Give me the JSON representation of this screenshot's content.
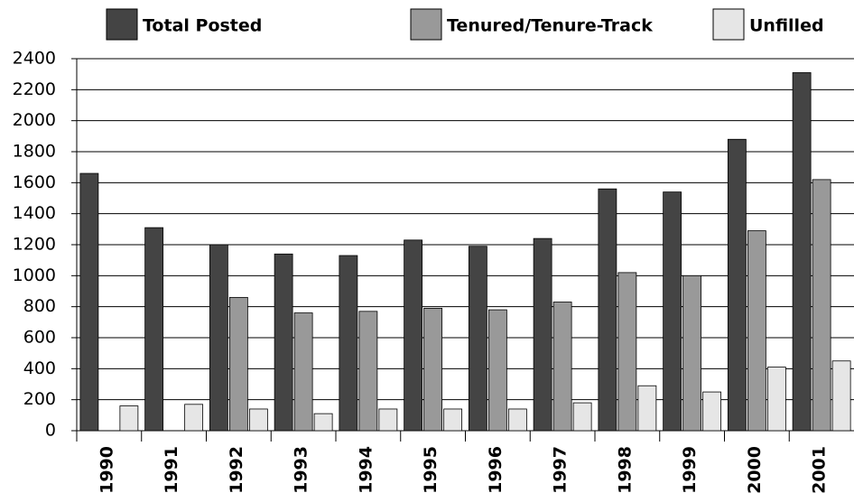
{
  "chart_data": {
    "type": "bar",
    "categories": [
      "1990",
      "1991",
      "1992",
      "1993",
      "1994",
      "1995",
      "1996",
      "1997",
      "1998",
      "1999",
      "2000",
      "2001"
    ],
    "series": [
      {
        "name": "Total Posted",
        "color": "#444444",
        "values": [
          1660,
          1310,
          1200,
          1140,
          1130,
          1230,
          1190,
          1240,
          1560,
          1540,
          1880,
          2310
        ]
      },
      {
        "name": "Tenured/Tenure-Track",
        "color": "#999999",
        "values": [
          null,
          null,
          860,
          760,
          770,
          790,
          780,
          830,
          1020,
          1000,
          1290,
          1620
        ]
      },
      {
        "name": "Unfilled",
        "color": "#e6e6e6",
        "values": [
          160,
          170,
          140,
          110,
          140,
          140,
          140,
          180,
          290,
          250,
          410,
          450
        ]
      }
    ],
    "ylim": [
      0,
      2400
    ],
    "yticks": [
      0,
      200,
      400,
      600,
      800,
      1000,
      1200,
      1400,
      1600,
      1800,
      2000,
      2200,
      2400
    ],
    "grid": true
  }
}
